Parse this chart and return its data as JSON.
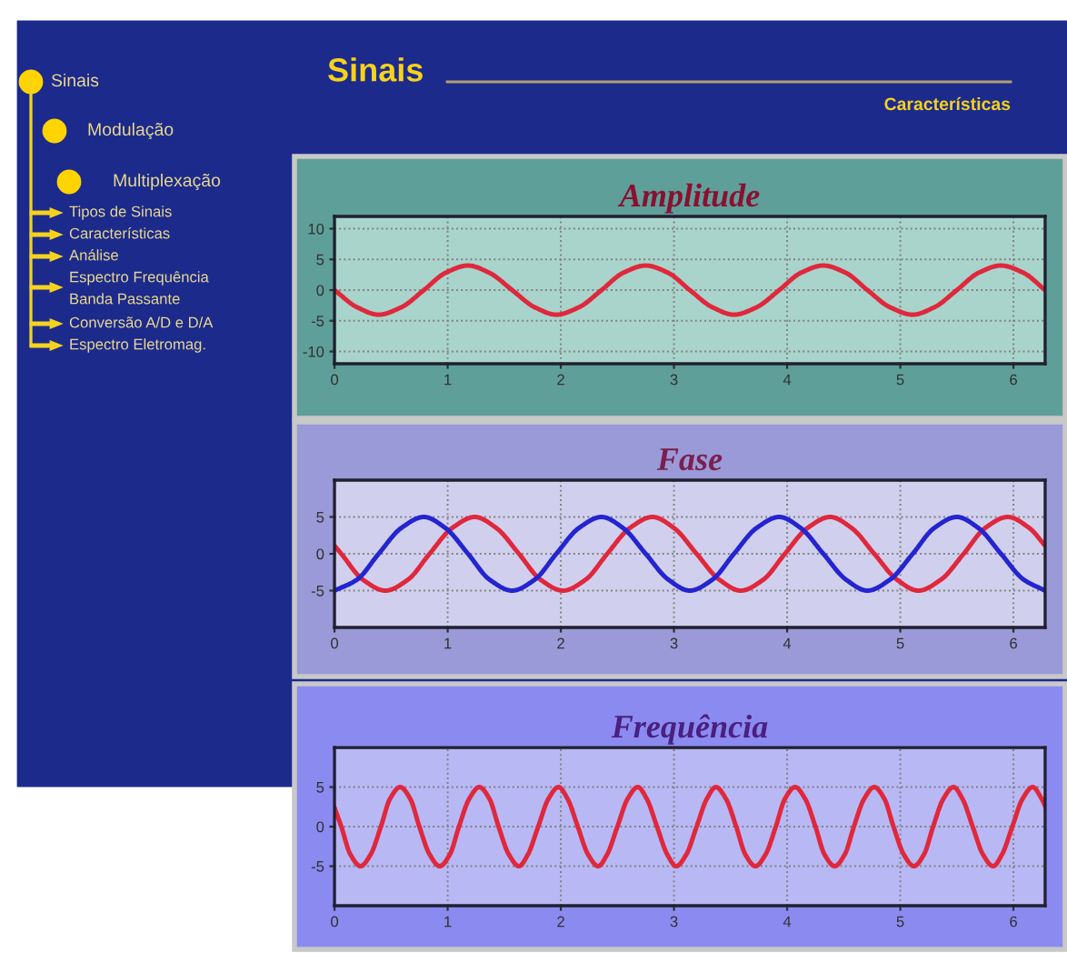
{
  "chart_data": [
    {
      "type": "other",
      "title": "Sinais",
      "subtitle": "Características",
      "annotations": [
        "Sinais",
        "Modulação",
        "Multiplexação",
        "Tipos de Sinais",
        "Características",
        "Análise",
        "Espectro Frequência",
        "Banda Passante",
        "Conversão A/D e D/A",
        "Espectro Eletromag."
      ]
    },
    {
      "type": "line",
      "title": "Amplitude",
      "xlim": [
        0,
        6.28
      ],
      "ylim": [
        -12,
        12
      ],
      "xticks": [
        0,
        1,
        2,
        3,
        4,
        5,
        6
      ],
      "yticks": [
        10,
        5,
        0,
        -5,
        -10
      ],
      "grid": true,
      "series": [
        {
          "color": "#e0283c",
          "x": [
            0,
            0.2,
            0.39,
            0.59,
            0.79,
            0.98,
            1.18,
            1.37,
            1.57,
            1.77,
            1.96,
            2.16,
            2.36,
            2.55,
            2.75,
            2.95,
            3.14,
            3.34,
            3.53,
            3.73,
            3.93,
            4.12,
            4.32,
            4.52,
            4.71,
            4.91,
            5.11,
            5.3,
            5.5,
            5.69,
            5.89,
            6.09,
            6.28
          ],
          "values": [
            0,
            -2.8,
            -4,
            -2.8,
            0,
            2.8,
            4,
            2.8,
            0,
            -2.8,
            -4,
            -2.8,
            0,
            2.8,
            4,
            2.8,
            0,
            -2.8,
            -4,
            -2.8,
            0,
            2.8,
            4,
            2.8,
            0,
            -2.8,
            -4,
            -2.8,
            0,
            2.8,
            4,
            2.8,
            0
          ]
        }
      ]
    },
    {
      "type": "line",
      "title": "Fase",
      "xlim": [
        0,
        6.28
      ],
      "ylim": [
        -10,
        10
      ],
      "xticks": [
        0,
        1,
        2,
        3,
        4,
        5,
        6
      ],
      "yticks": [
        5,
        0,
        -5
      ],
      "grid": true,
      "series": [
        {
          "color": "#e0283c",
          "x": [
            0,
            0.06,
            0.25,
            0.45,
            0.65,
            0.84,
            1.04,
            1.24,
            1.43,
            1.63,
            1.82,
            2.02,
            2.22,
            2.41,
            2.61,
            2.81,
            3.0,
            3.2,
            3.4,
            3.59,
            3.79,
            3.98,
            4.18,
            4.38,
            4.57,
            4.77,
            4.97,
            5.16,
            5.36,
            5.56,
            5.75,
            5.95,
            6.14,
            6.28
          ],
          "values": [
            1.1,
            0,
            -3.5,
            -5,
            -3.5,
            0,
            3.5,
            5,
            3.5,
            0,
            -3.5,
            -5,
            -3.5,
            0,
            3.5,
            5,
            3.5,
            0,
            -3.5,
            -5,
            -3.5,
            0,
            3.5,
            5,
            3.5,
            0,
            -3.5,
            -5,
            -3.5,
            0,
            3.5,
            5,
            3.5,
            1.1
          ]
        },
        {
          "color": "#2424d0",
          "x": [
            0,
            0.2,
            0.39,
            0.59,
            0.79,
            0.98,
            1.18,
            1.37,
            1.57,
            1.77,
            1.96,
            2.16,
            2.36,
            2.55,
            2.75,
            2.95,
            3.14,
            3.34,
            3.53,
            3.73,
            3.93,
            4.12,
            4.32,
            4.52,
            4.71,
            4.91,
            5.11,
            5.3,
            5.5,
            5.69,
            5.89,
            6.09,
            6.28
          ],
          "values": [
            -5,
            -3.5,
            0,
            3.5,
            5,
            3.5,
            0,
            -3.5,
            -5,
            -3.5,
            0,
            3.5,
            5,
            3.5,
            0,
            -3.5,
            -5,
            -3.5,
            0,
            3.5,
            5,
            3.5,
            0,
            -3.5,
            -5,
            -3.5,
            0,
            3.5,
            5,
            3.5,
            0,
            -3.5,
            -5
          ]
        }
      ]
    },
    {
      "type": "line",
      "title": "Frequência",
      "xlim": [
        0,
        6.28
      ],
      "ylim": [
        -10,
        10
      ],
      "xticks": [
        0,
        1,
        2,
        3,
        4,
        5,
        6
      ],
      "yticks": [
        5,
        0,
        -5
      ],
      "grid": true,
      "series": [
        {
          "color": "#e0283c",
          "x": [
            0,
            0.06,
            0.14,
            0.23,
            0.32,
            0.41,
            0.49,
            0.58,
            0.67,
            0.75,
            0.84,
            0.93,
            1.02,
            1.1,
            1.19,
            1.28,
            1.37,
            1.45,
            1.54,
            1.63,
            1.71,
            1.8,
            1.89,
            1.98,
            2.06,
            2.15,
            2.24,
            2.33,
            2.41,
            2.5,
            2.59,
            2.68,
            2.76,
            2.85,
            2.94,
            3.02,
            3.11,
            3.2,
            3.29,
            3.37,
            3.46,
            3.55,
            3.63,
            3.72,
            3.81,
            3.9,
            3.98,
            4.07,
            4.16,
            4.25,
            4.33,
            4.42,
            4.51,
            4.59,
            4.68,
            4.77,
            4.86,
            4.94,
            5.03,
            5.12,
            5.21,
            5.29,
            5.38,
            5.47,
            5.55,
            5.64,
            5.73,
            5.82,
            5.9,
            5.99,
            6.08,
            6.17,
            6.25,
            6.28
          ],
          "values": [
            2.4,
            0,
            -3.5,
            -5,
            -3.5,
            0,
            3.5,
            5,
            3.5,
            0,
            -3.5,
            -5,
            -3.5,
            0,
            3.5,
            5,
            3.5,
            0,
            -3.5,
            -5,
            -3.5,
            0,
            3.5,
            5,
            3.5,
            0,
            -3.5,
            -5,
            -3.5,
            0,
            3.5,
            5,
            3.5,
            0,
            -3.5,
            -5,
            -3.5,
            0,
            3.5,
            5,
            3.5,
            0,
            -3.5,
            -5,
            -3.5,
            0,
            3.5,
            5,
            3.5,
            0,
            -3.5,
            -5,
            -3.5,
            0,
            3.5,
            5,
            3.5,
            0,
            -3.5,
            -5,
            -3.5,
            0,
            3.5,
            5,
            3.5,
            0,
            -3.5,
            -5,
            -3.5,
            0,
            3.5,
            5,
            3.5,
            2.6
          ]
        }
      ]
    }
  ]
}
